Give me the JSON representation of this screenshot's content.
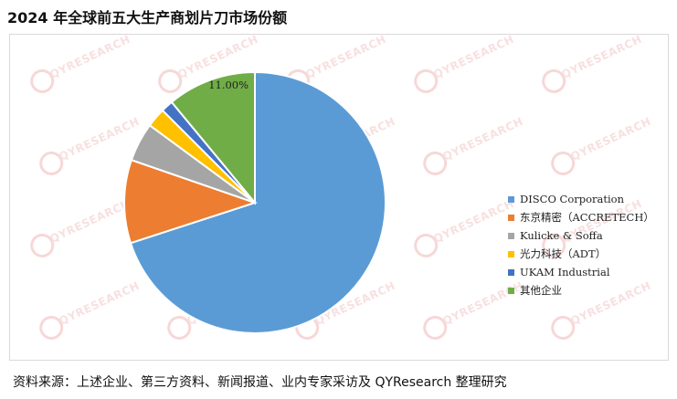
{
  "title": "2024 年全球前五大生产商划片刀市场份额",
  "source": "资料来源：上述企业、第三方资料、新闻报道、业内专家采访及 QYResearch 整理研究",
  "watermark_text": "QYRESEARCH",
  "chart_data": {
    "type": "pie",
    "title": "2024 年全球前五大生产商划片刀市场份额",
    "legend_position": "right",
    "slices": [
      {
        "label": "DISCO Corporation",
        "value": 70.0,
        "color": "#5b9bd5"
      },
      {
        "label": "东京精密（ACCRETECH）",
        "value": 10.3,
        "color": "#ed7d31"
      },
      {
        "label": "Kulicke & Soffa",
        "value": 4.8,
        "color": "#a5a5a5"
      },
      {
        "label": "光力科技（ADT）",
        "value": 2.4,
        "color": "#ffc000"
      },
      {
        "label": "UKAM Industrial",
        "value": 1.5,
        "color": "#4472c4"
      },
      {
        "label": "其他企业",
        "value": 11.0,
        "color": "#70ad47"
      }
    ],
    "data_labels": [
      {
        "slice": "其他企业",
        "text": "11.00%"
      }
    ]
  }
}
